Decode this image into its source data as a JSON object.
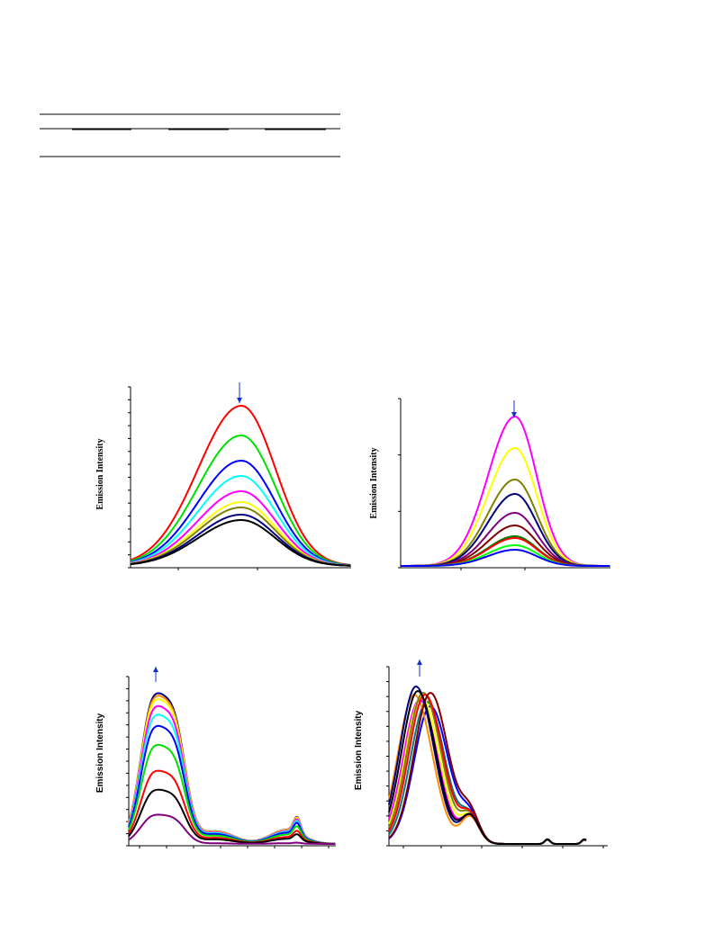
{
  "figures": [
    {
      "y_label": "Emission Intensity"
    },
    {
      "y_label": "Emission Intensity"
    },
    {
      "y_label": "Emission Intensity"
    },
    {
      "y_label": "Emission Intensity"
    }
  ]
}
